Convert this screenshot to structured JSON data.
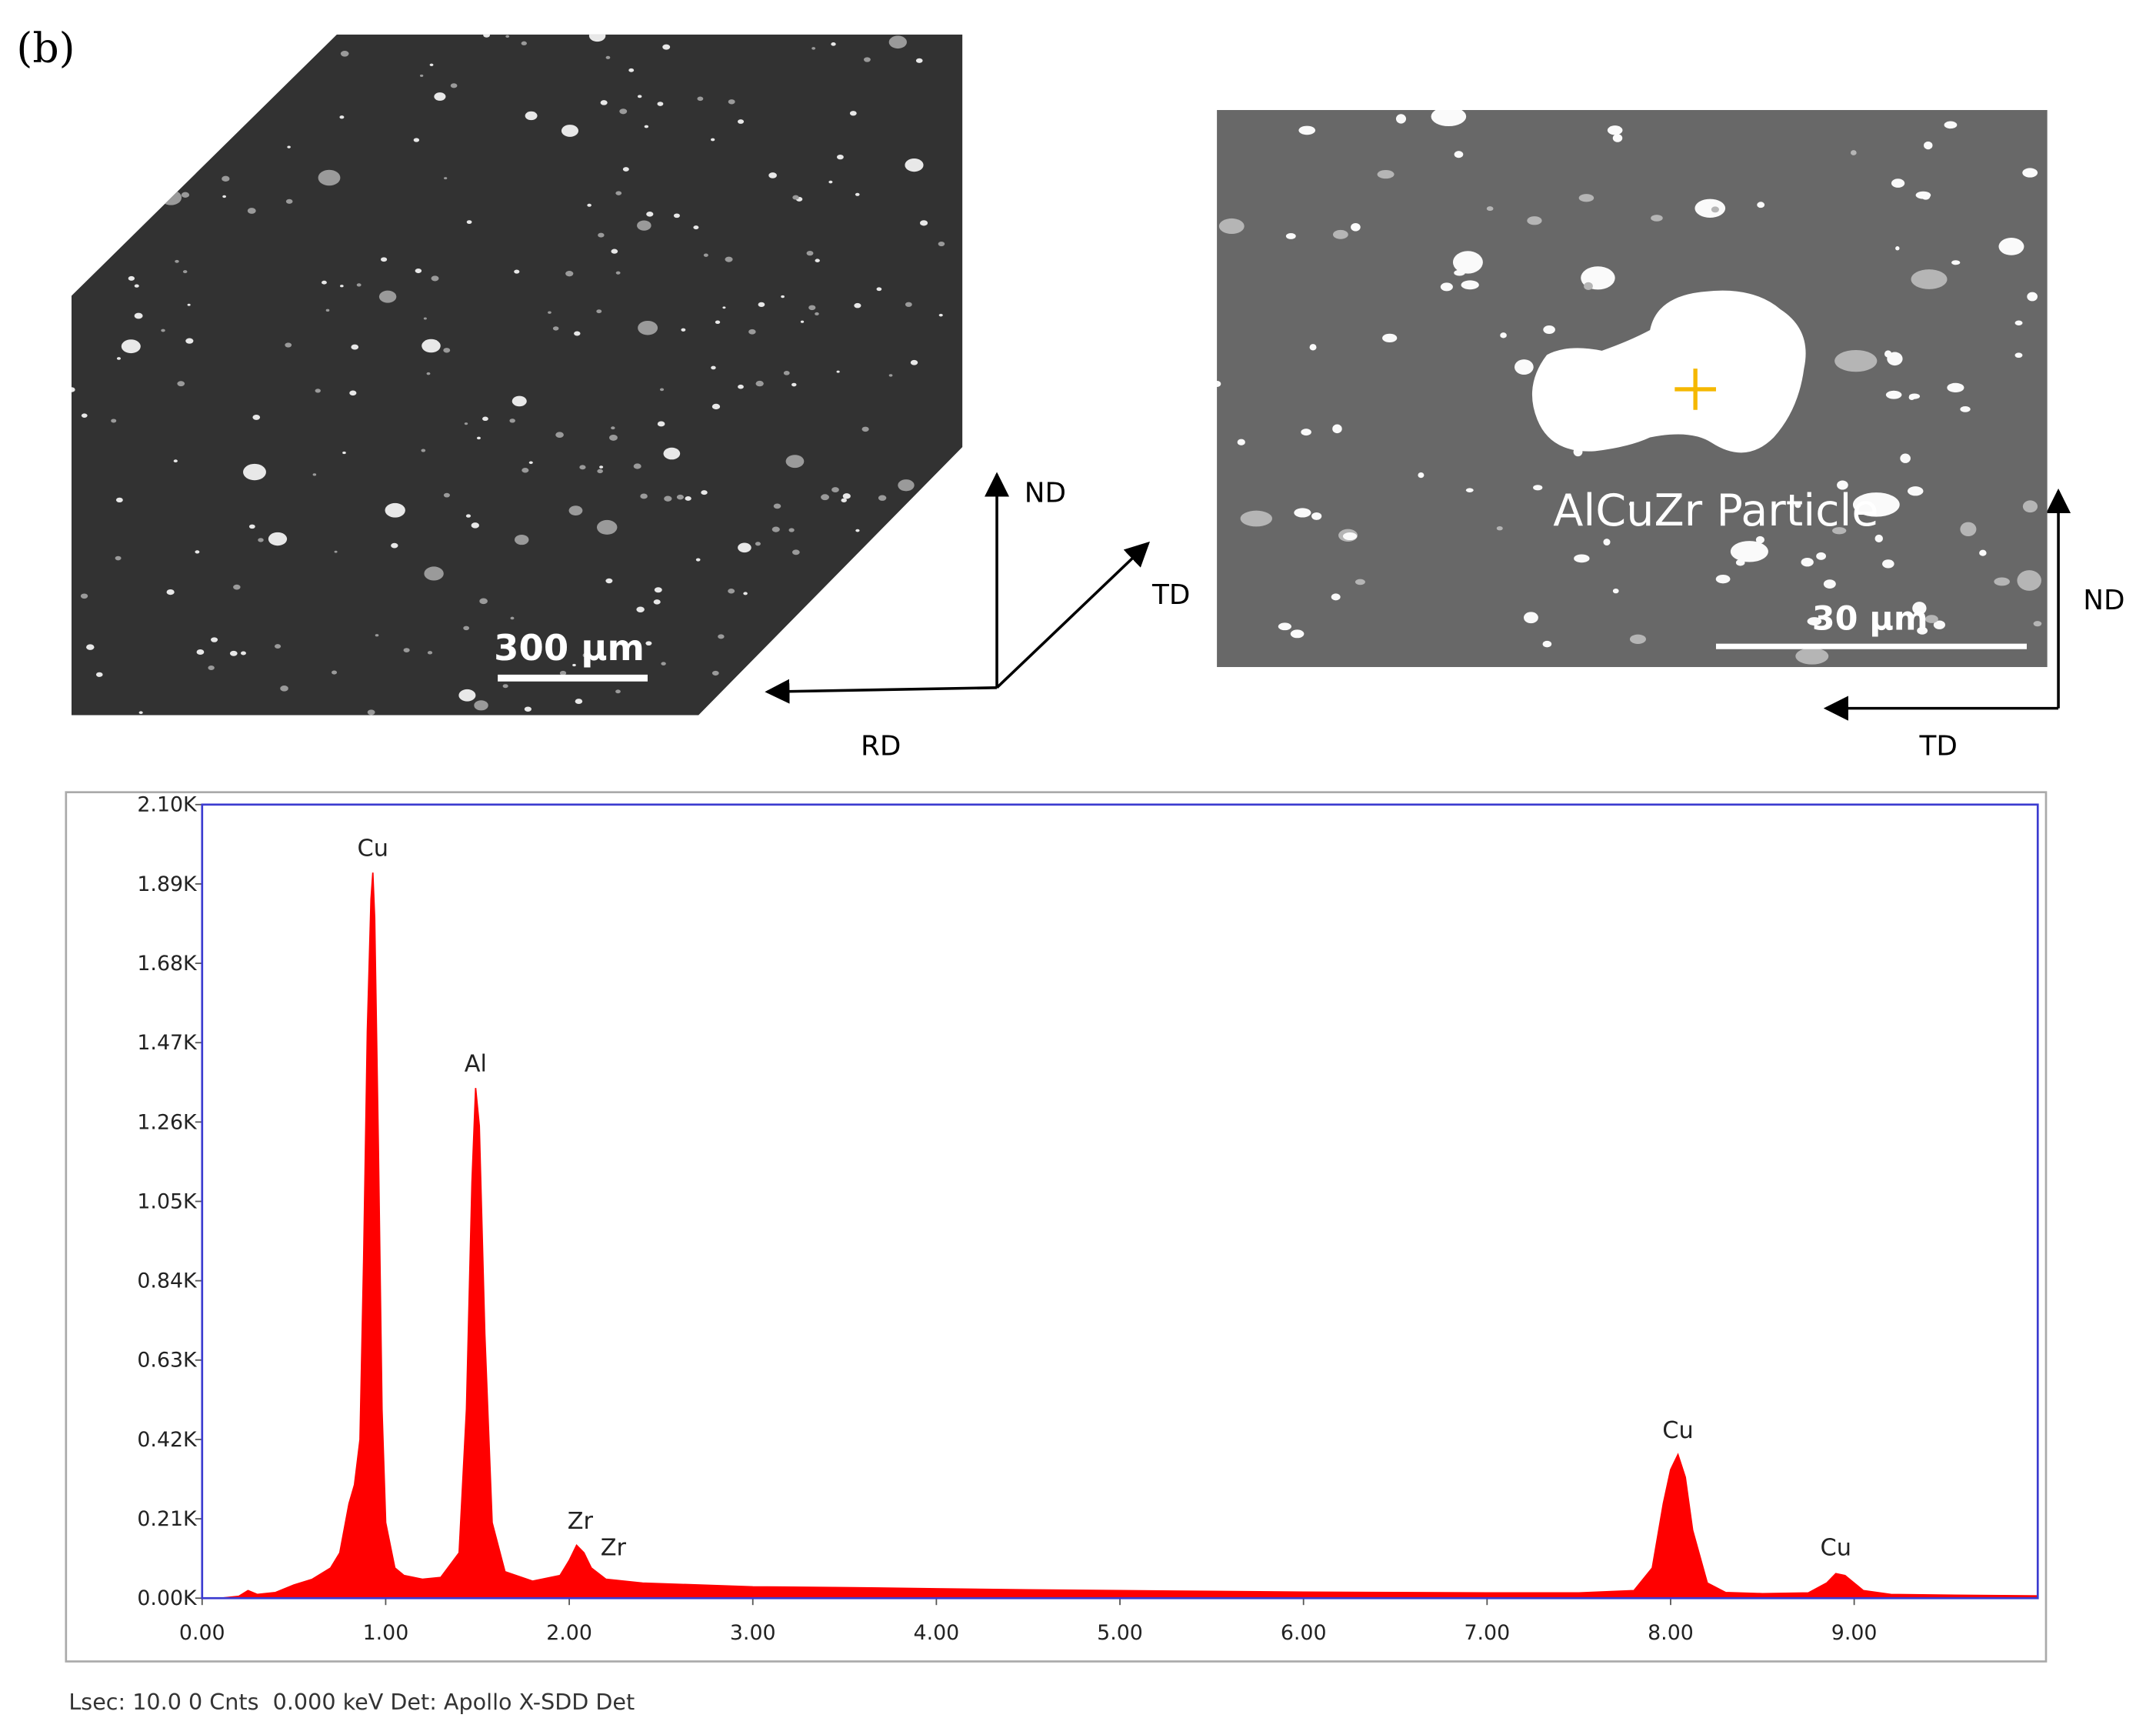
{
  "figure": {
    "panel_label": "(b)",
    "left_image": {
      "scale_bar": "300 µm",
      "axes": {
        "nd": "ND",
        "td": "TD",
        "rd": "RD"
      }
    },
    "right_image": {
      "label": "AlCuZr Particle",
      "scale_bar": "30 µm",
      "axes": {
        "nd": "ND",
        "td": "TD"
      }
    },
    "footer": "Lsec: 10.0 0 Cnts  0.000 keV Det: Apollo X-SDD Det"
  },
  "chart_data": {
    "type": "area",
    "color": "#ff0000",
    "x": [
      0,
      0.1,
      0.2,
      0.25,
      0.3,
      0.4,
      0.5,
      0.6,
      0.7,
      0.75,
      0.8,
      0.83,
      0.86,
      0.88,
      0.9,
      0.92,
      0.93,
      0.94,
      0.96,
      0.98,
      1.0,
      1.05,
      1.1,
      1.2,
      1.3,
      1.4,
      1.44,
      1.47,
      1.49,
      1.51,
      1.54,
      1.58,
      1.65,
      1.8,
      1.95,
      2.0,
      2.04,
      2.08,
      2.12,
      2.2,
      2.4,
      2.7,
      3.0,
      3.5,
      4.0,
      4.5,
      5.0,
      5.5,
      6.0,
      6.5,
      7.0,
      7.5,
      7.8,
      7.9,
      7.96,
      8.0,
      8.04,
      8.08,
      8.12,
      8.2,
      8.3,
      8.5,
      8.75,
      8.85,
      8.9,
      8.95,
      9.05,
      9.2,
      9.5,
      10.0
    ],
    "values": [
      0,
      0,
      5,
      20,
      10,
      15,
      35,
      50,
      80,
      120,
      250,
      300,
      420,
      900,
      1500,
      1850,
      1920,
      1800,
      1200,
      500,
      200,
      80,
      60,
      50,
      55,
      120,
      500,
      1100,
      1350,
      1250,
      700,
      200,
      70,
      45,
      60,
      100,
      140,
      120,
      80,
      50,
      40,
      35,
      30,
      28,
      25,
      22,
      20,
      18,
      16,
      15,
      14,
      14,
      20,
      80,
      250,
      340,
      380,
      320,
      180,
      40,
      15,
      12,
      14,
      40,
      65,
      60,
      20,
      10,
      8,
      6
    ],
    "xlim": [
      0,
      10
    ],
    "xticks": [
      {
        "value": 0,
        "label": "0.00"
      },
      {
        "value": 1,
        "label": "1.00"
      },
      {
        "value": 2,
        "label": "2.00"
      },
      {
        "value": 3,
        "label": "3.00"
      },
      {
        "value": 4,
        "label": "4.00"
      },
      {
        "value": 5,
        "label": "5.00"
      },
      {
        "value": 6,
        "label": "6.00"
      },
      {
        "value": 7,
        "label": "7.00"
      },
      {
        "value": 8,
        "label": "8.00"
      },
      {
        "value": 9,
        "label": "9.00"
      }
    ],
    "ylim": [
      0,
      2100
    ],
    "yticks": [
      {
        "value": 0,
        "label": "0.00K"
      },
      {
        "value": 210,
        "label": "0.21K"
      },
      {
        "value": 420,
        "label": "0.42K"
      },
      {
        "value": 630,
        "label": "0.63K"
      },
      {
        "value": 840,
        "label": "0.84K"
      },
      {
        "value": 1050,
        "label": "1.05K"
      },
      {
        "value": 1260,
        "label": "1.26K"
      },
      {
        "value": 1470,
        "label": "1.47K"
      },
      {
        "value": 1680,
        "label": "1.68K"
      },
      {
        "value": 1890,
        "label": "1.89K"
      },
      {
        "value": 2100,
        "label": "2.10K"
      }
    ],
    "annotations": [
      {
        "text": "Cu",
        "x": 0.93,
        "y": 1920
      },
      {
        "text": "Al",
        "x": 1.49,
        "y": 1350
      },
      {
        "text": "Zr",
        "x": 2.06,
        "y": 140
      },
      {
        "text": "Zr",
        "x": 2.24,
        "y": 70
      },
      {
        "text": "Cu",
        "x": 8.04,
        "y": 380
      },
      {
        "text": "Cu",
        "x": 8.9,
        "y": 70
      }
    ]
  }
}
